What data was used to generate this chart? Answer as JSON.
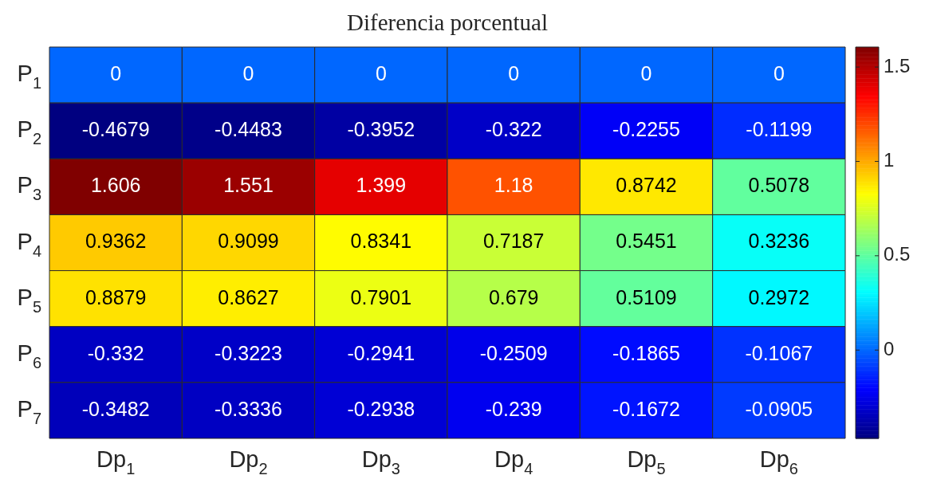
{
  "chart_data": {
    "type": "heatmap",
    "title": "Diferencia porcentual",
    "categories": [
      "Dp$_{1}$",
      "Dp$_{2}$",
      "Dp$_{3}$",
      "Dp$_{4}$",
      "Dp$_{5}$",
      "Dp$_{6}$"
    ],
    "y_categories": [
      "P$_{1}$",
      "P$_{2}$",
      "P$_{3}$",
      "P$_{4}$",
      "P$_{5}$",
      "P$_{6}$",
      "P$_{7}$"
    ],
    "cells": [
      [
        0,
        0,
        0,
        0,
        0,
        0
      ],
      [
        -0.4679,
        -0.4483,
        -0.3952,
        -0.322,
        -0.2255,
        -0.1199
      ],
      [
        1.606,
        1.551,
        1.399,
        1.18,
        0.8742,
        0.5078
      ],
      [
        0.9362,
        0.9099,
        0.8341,
        0.7187,
        0.5451,
        0.3236
      ],
      [
        0.8879,
        0.8627,
        0.7901,
        0.679,
        0.5109,
        0.2972
      ],
      [
        -0.332,
        -0.3223,
        -0.2941,
        -0.2509,
        -0.1865,
        -0.1067
      ],
      [
        -0.3482,
        -0.3336,
        -0.2938,
        -0.239,
        -0.1672,
        -0.0905
      ]
    ],
    "clim": [
      -0.4679,
      1.606
    ],
    "cticks": [
      0,
      0.5,
      1,
      1.5
    ],
    "data_labels": true
  }
}
